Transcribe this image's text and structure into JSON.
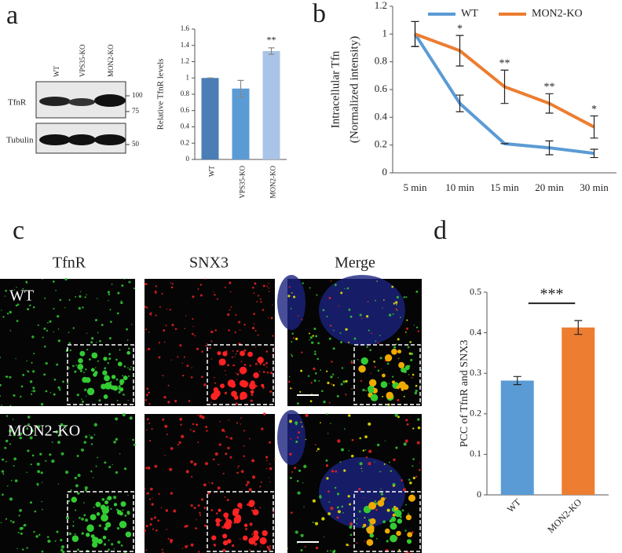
{
  "panel_labels": [
    "a",
    "b",
    "c",
    "d"
  ],
  "blot": {
    "lanes": [
      "WT",
      "VPS35-KO",
      "MON2-KO"
    ],
    "rows": [
      "TfnR",
      "Tubulin"
    ],
    "markers": [
      "100",
      "75",
      "50"
    ]
  },
  "microscopy": {
    "columns": [
      "TfnR",
      "SNX3",
      "Merge"
    ],
    "rows": [
      "WT",
      "MON2-KO"
    ]
  },
  "chart_data": [
    {
      "type": "bar",
      "ylabel": "Relative TfnR levels",
      "categories": [
        "WT",
        "VPS35-KO",
        "MON2-KO"
      ],
      "values": [
        1,
        0.87,
        1.33
      ],
      "errors": [
        0,
        0.1,
        0.04
      ],
      "colors": [
        "#4a7eb5",
        "#5b9bd5",
        "#a9c4e6"
      ],
      "value_annotations": [
        null,
        null,
        "**"
      ],
      "ylim": [
        0,
        1.6
      ],
      "yticks": [
        0,
        0.2,
        0.4,
        0.6,
        0.8,
        1,
        1.2,
        1.4,
        1.6
      ]
    },
    {
      "type": "line",
      "ylabel": [
        "Intracellular Tfn",
        "(Normalized intensity)"
      ],
      "categories": [
        "5 min",
        "10 min",
        "15 min",
        "20 min",
        "30 min"
      ],
      "series": [
        {
          "name": "WT",
          "color": "#5b9bd5",
          "values": [
            1,
            0.5,
            0.21,
            0.18,
            0.14
          ],
          "errors": [
            0.09,
            0.06,
            0,
            0.05,
            0.03
          ]
        },
        {
          "name": "MON2-KO",
          "color": "#ed7d31",
          "values": [
            1,
            0.88,
            0.62,
            0.5,
            0.33
          ],
          "errors": [
            0.09,
            0.11,
            0.12,
            0.07,
            0.08
          ]
        }
      ],
      "value_annotations": [
        null,
        "*",
        "**",
        "**",
        "*"
      ],
      "legend": "top",
      "ylim": [
        0,
        1.2
      ],
      "yticks": [
        0,
        0.2,
        0.4,
        0.6,
        0.8,
        1,
        1.2
      ]
    },
    {
      "type": "bar",
      "ylabel": "PCC of TfnR and SNX3",
      "categories": [
        "WT",
        "MON2-KO"
      ],
      "values": [
        0.282,
        0.413
      ],
      "errors": [
        0.01,
        0.017
      ],
      "colors": [
        "#5b9bd5",
        "#ed7d31"
      ],
      "annotation": "***",
      "ylim": [
        0,
        0.5
      ],
      "yticks": [
        0,
        0.1,
        0.2,
        0.3,
        0.4,
        0.5
      ]
    }
  ]
}
